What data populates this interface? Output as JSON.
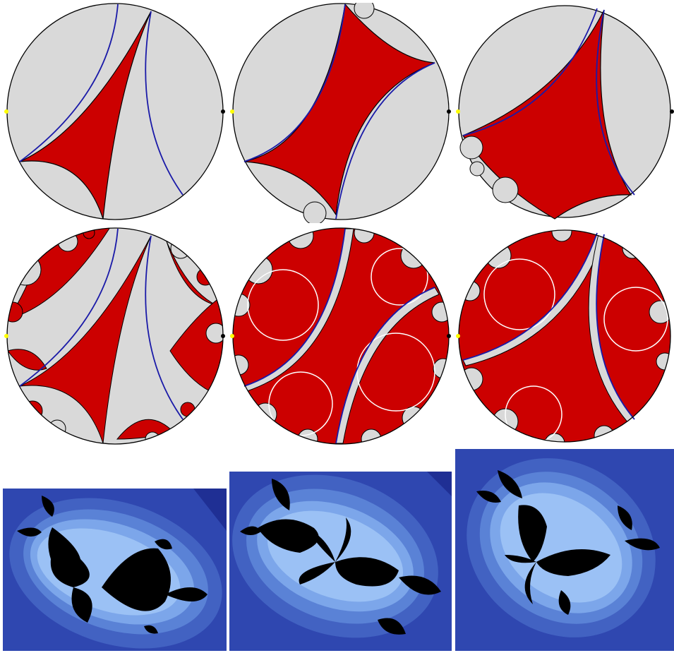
{
  "colors": {
    "background": "#ffffff",
    "disk_fill": "#d9d9d9",
    "region_red": "#cc0000",
    "outline": "#000000",
    "geodesic_blue": "#1a1aa8",
    "marker_yellow": "#ffff00",
    "marker_black": "#000000",
    "julia_bg_dark": "#1f2f94",
    "julia_bg": "#2f47b0",
    "julia_band1": "#4262c2",
    "julia_band2": "#5a82d6",
    "julia_band3": "#7ca6ea",
    "julia_glow": "#a8cdfa",
    "julia_set": "#000000"
  },
  "figure": {
    "rows": [
      {
        "kind": "hyperbolic-disk",
        "variant": "fundamental-domain",
        "count": 3
      },
      {
        "kind": "hyperbolic-disk",
        "variant": "tessellation",
        "count": 3
      },
      {
        "kind": "julia-set",
        "count": 3
      }
    ]
  }
}
